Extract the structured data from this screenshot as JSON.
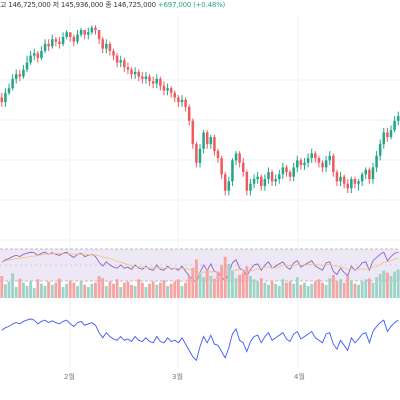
{
  "header": {
    "legend_items": [
      "고",
      "146,725,000",
      "저",
      "145,936,000",
      "종",
      "146,725,000",
      "+697,000 (+0.48%)"
    ]
  },
  "colors": {
    "up": "#21a68a",
    "down": "#ef5a5f",
    "vol_up": "#9fd3c7",
    "vol_down": "#f5a3a3",
    "rsi_line": "#7e57c2",
    "rsi_band": "#ede7f6",
    "ma_line": "#f5c27a",
    "osc_line": "#3d5afe",
    "grid": "#f0f0f3",
    "hline": "#bdbdbd"
  },
  "xaxis": {
    "labels": [
      "2월",
      "3월",
      "4월"
    ]
  },
  "chart_data": [
    {
      "type": "candlestick",
      "series": [
        {
          "name": "",
          "open": [
            70,
            68,
            72,
            74,
            78,
            80,
            79,
            82,
            85,
            88,
            89,
            87,
            90,
            93,
            92,
            95,
            94,
            93,
            96,
            98,
            96,
            94,
            97,
            99,
            97,
            98,
            100,
            99,
            95,
            91,
            93,
            90,
            88,
            85,
            86,
            83,
            82,
            80,
            81,
            79,
            78,
            79,
            77,
            76,
            78,
            75,
            73,
            74,
            72,
            70,
            68,
            69,
            66,
            60,
            50,
            42,
            48,
            55,
            50,
            53,
            47,
            44,
            37,
            30,
            34,
            43,
            46,
            42,
            38,
            30,
            33,
            35,
            36,
            32,
            35,
            38,
            34,
            35,
            37,
            40,
            38,
            36,
            40,
            43,
            41,
            42,
            44,
            46,
            44,
            42,
            40,
            43,
            45,
            38,
            34,
            36,
            33,
            31,
            35,
            33,
            34,
            37,
            39,
            35,
            40,
            45,
            50,
            55,
            53,
            56,
            60
          ],
          "close": [
            68,
            72,
            74,
            78,
            80,
            79,
            82,
            85,
            88,
            89,
            87,
            90,
            93,
            92,
            95,
            94,
            93,
            96,
            98,
            96,
            94,
            97,
            99,
            97,
            98,
            100,
            99,
            95,
            91,
            93,
            90,
            88,
            85,
            86,
            83,
            82,
            80,
            81,
            79,
            78,
            79,
            77,
            76,
            78,
            75,
            73,
            74,
            72,
            70,
            68,
            69,
            66,
            60,
            50,
            42,
            48,
            55,
            50,
            53,
            47,
            44,
            37,
            30,
            34,
            43,
            46,
            42,
            38,
            30,
            33,
            35,
            36,
            32,
            35,
            38,
            34,
            35,
            37,
            40,
            38,
            36,
            40,
            43,
            41,
            42,
            44,
            46,
            44,
            42,
            40,
            43,
            45,
            38,
            34,
            36,
            33,
            31,
            35,
            33,
            34,
            37,
            39,
            35,
            40,
            45,
            50,
            55,
            53,
            56,
            60,
            62
          ],
          "high": [
            72,
            74,
            76,
            80,
            82,
            82,
            84,
            88,
            90,
            91,
            90,
            92,
            95,
            95,
            97,
            96,
            96,
            98,
            99,
            98,
            97,
            99,
            100,
            99,
            100,
            101,
            101,
            99,
            96,
            95,
            94,
            91,
            89,
            88,
            87,
            85,
            83,
            83,
            82,
            81,
            81,
            80,
            79,
            80,
            79,
            77,
            76,
            75,
            73,
            71,
            71,
            70,
            67,
            61,
            51,
            50,
            56,
            56,
            54,
            54,
            48,
            45,
            38,
            36,
            44,
            47,
            47,
            44,
            39,
            35,
            37,
            38,
            37,
            37,
            40,
            39,
            37,
            39,
            42,
            41,
            39,
            42,
            45,
            44,
            44,
            46,
            48,
            47,
            45,
            43,
            45,
            47,
            46,
            39,
            38,
            37,
            35,
            36,
            36,
            35,
            38,
            40,
            40,
            42,
            47,
            52,
            57,
            57,
            58,
            62,
            64
          ],
          "low": [
            66,
            66,
            71,
            73,
            76,
            77,
            78,
            81,
            84,
            86,
            85,
            86,
            89,
            90,
            91,
            92,
            91,
            92,
            95,
            94,
            92,
            93,
            96,
            95,
            95,
            97,
            97,
            93,
            89,
            89,
            88,
            86,
            83,
            83,
            81,
            80,
            78,
            78,
            77,
            76,
            76,
            75,
            74,
            74,
            73,
            71,
            71,
            70,
            68,
            66,
            66,
            64,
            58,
            48,
            40,
            40,
            46,
            48,
            48,
            45,
            42,
            35,
            28,
            28,
            32,
            41,
            40,
            36,
            28,
            28,
            31,
            33,
            30,
            30,
            33,
            32,
            32,
            33,
            35,
            36,
            34,
            34,
            38,
            39,
            39,
            40,
            42,
            42,
            40,
            38,
            38,
            41,
            36,
            32,
            32,
            31,
            29,
            29,
            31,
            30,
            32,
            35,
            33,
            33,
            38,
            43,
            48,
            51,
            52,
            55,
            58
          ]
        }
      ],
      "ylim": [
        20,
        105
      ]
    },
    {
      "type": "bar",
      "series": [
        {
          "name": "",
          "values": [
            40,
            25,
            30,
            45,
            20,
            35,
            28,
            22,
            30,
            18,
            34,
            26,
            22,
            30,
            24,
            28,
            35,
            20,
            26,
            32,
            28,
            22,
            30,
            24,
            20,
            26,
            28,
            40,
            36,
            22,
            30,
            26,
            34,
            20,
            28,
            30,
            24,
            22,
            34,
            28,
            20,
            26,
            30,
            24,
            28,
            32,
            22,
            26,
            30,
            34,
            22,
            28,
            40,
            55,
            70,
            45,
            38,
            52,
            40,
            35,
            48,
            60,
            75,
            62,
            50,
            36,
            42,
            46,
            58,
            40,
            34,
            30,
            36,
            28,
            24,
            30,
            26,
            22,
            34,
            28,
            30,
            26,
            38,
            24,
            28,
            22,
            26,
            30,
            34,
            28,
            24,
            36,
            42,
            30,
            34,
            28,
            40,
            32,
            26,
            24,
            30,
            34,
            36,
            28,
            38,
            44,
            50,
            46,
            40,
            48,
            52
          ]
        }
      ],
      "ylim": [
        0,
        100
      ]
    },
    {
      "type": "line",
      "series": [
        {
          "name": "",
          "values": [
            55,
            60,
            62,
            66,
            68,
            66,
            70,
            72,
            74,
            73,
            68,
            72,
            74,
            70,
            73,
            70,
            68,
            72,
            74,
            68,
            64,
            70,
            72,
            66,
            68,
            70,
            66,
            55,
            48,
            56,
            50,
            46,
            44,
            50,
            44,
            46,
            42,
            50,
            44,
            42,
            48,
            42,
            40,
            50,
            42,
            40,
            48,
            42,
            44,
            40,
            48,
            38,
            30,
            22,
            18,
            36,
            50,
            40,
            52,
            38,
            36,
            28,
            20,
            34,
            54,
            60,
            44,
            40,
            28,
            42,
            50,
            52,
            40,
            50,
            56,
            44,
            48,
            52,
            56,
            46,
            42,
            54,
            58,
            46,
            50,
            54,
            58,
            48,
            44,
            40,
            54,
            56,
            38,
            32,
            44,
            36,
            30,
            48,
            40,
            46,
            54,
            56,
            40,
            58,
            64,
            70,
            74,
            58,
            66,
            72,
            74
          ]
        }
      ],
      "ylim": [
        0,
        100
      ]
    },
    {
      "type": "line",
      "series": [
        {
          "name": "",
          "values": [
            60,
            64,
            66,
            70,
            72,
            70,
            74,
            76,
            78,
            76,
            70,
            74,
            76,
            72,
            75,
            72,
            70,
            74,
            76,
            70,
            66,
            72,
            74,
            68,
            70,
            72,
            68,
            56,
            48,
            56,
            50,
            46,
            44,
            50,
            44,
            46,
            42,
            50,
            44,
            42,
            48,
            42,
            40,
            50,
            42,
            40,
            48,
            42,
            44,
            40,
            48,
            38,
            28,
            18,
            12,
            34,
            50,
            40,
            52,
            38,
            36,
            26,
            16,
            32,
            54,
            62,
            44,
            40,
            26,
            42,
            50,
            52,
            40,
            50,
            56,
            44,
            48,
            52,
            56,
            46,
            42,
            54,
            58,
            46,
            50,
            54,
            58,
            48,
            44,
            40,
            54,
            56,
            38,
            30,
            44,
            36,
            28,
            48,
            40,
            46,
            54,
            56,
            40,
            58,
            66,
            72,
            76,
            58,
            66,
            72,
            76
          ]
        }
      ],
      "ylim": [
        0,
        100
      ]
    }
  ]
}
